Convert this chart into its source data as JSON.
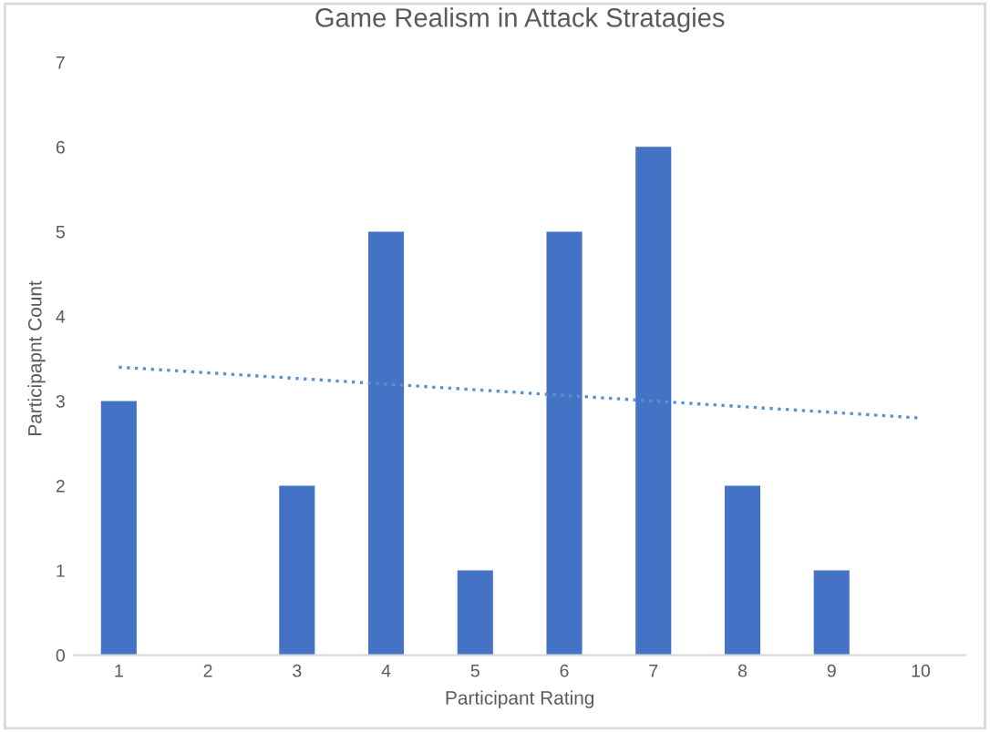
{
  "chart_data": {
    "type": "bar",
    "title": "Game Realism in Attack Stratagies",
    "xlabel": "Participant Rating",
    "ylabel": "Participapnt Count",
    "categories": [
      "1",
      "2",
      "3",
      "4",
      "5",
      "6",
      "7",
      "8",
      "9",
      "10"
    ],
    "series": [
      {
        "color": "#4472c4",
        "values": [
          3,
          0,
          2,
          5,
          1,
          5,
          6,
          2,
          1,
          0
        ]
      },
      {
        "type": "line",
        "color": "#5b8fd0",
        "line_style": "dotted",
        "values": [
          3.4,
          null,
          null,
          null,
          null,
          null,
          null,
          null,
          null,
          2.8
        ]
      }
    ],
    "ylim": [
      0,
      7
    ],
    "yticks": [
      0,
      1,
      2,
      3,
      4,
      5,
      6,
      7
    ],
    "grid": false,
    "legend": false
  }
}
